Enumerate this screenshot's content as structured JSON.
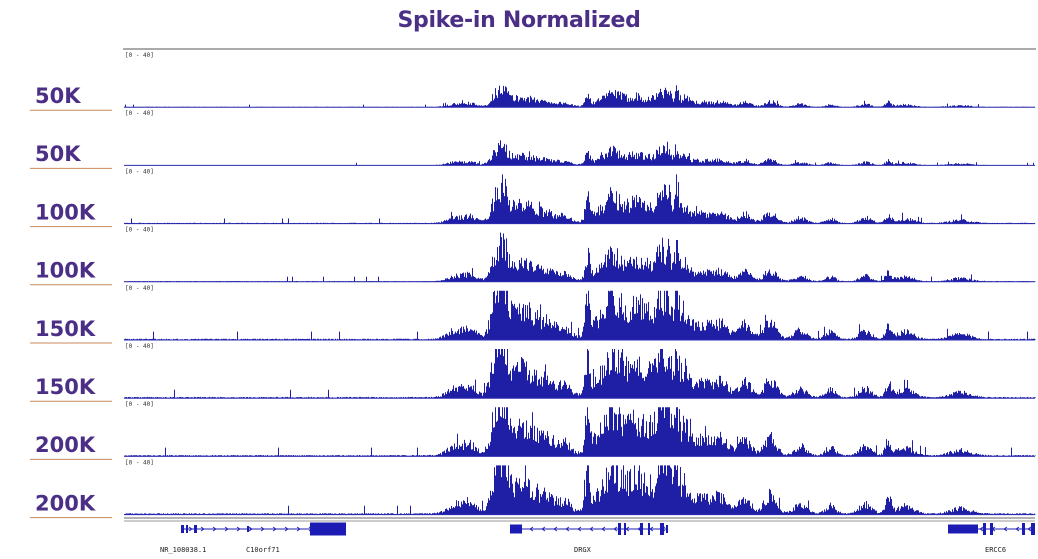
{
  "title": "Spike-in Normalized",
  "colors": {
    "title": "#4b2f86",
    "label": "#4b2f86",
    "underline": "#c88a5a",
    "signal": "#1f1fa6",
    "baseline": "#2b2bb0",
    "gene": "#1c1cb4",
    "frame": "#555555"
  },
  "chart_data": {
    "type": "area",
    "data_range_label": "[0 - 40]",
    "ylim": [
      0,
      40
    ],
    "tracks": [
      {
        "label": "50K",
        "scale": 0.3
      },
      {
        "label": "50K",
        "scale": 0.3
      },
      {
        "label": "100K",
        "scale": 0.58
      },
      {
        "label": "100K",
        "scale": 0.58
      },
      {
        "label": "150K",
        "scale": 0.95
      },
      {
        "label": "150K",
        "scale": 0.95
      },
      {
        "label": "200K",
        "scale": 1.0
      },
      {
        "label": "200K",
        "scale": 1.0
      }
    ],
    "genes": [
      {
        "name": "NR_108038.1"
      },
      {
        "name": "C10orf71"
      },
      {
        "name": "DRGX"
      },
      {
        "name": "ERCC6"
      }
    ]
  }
}
